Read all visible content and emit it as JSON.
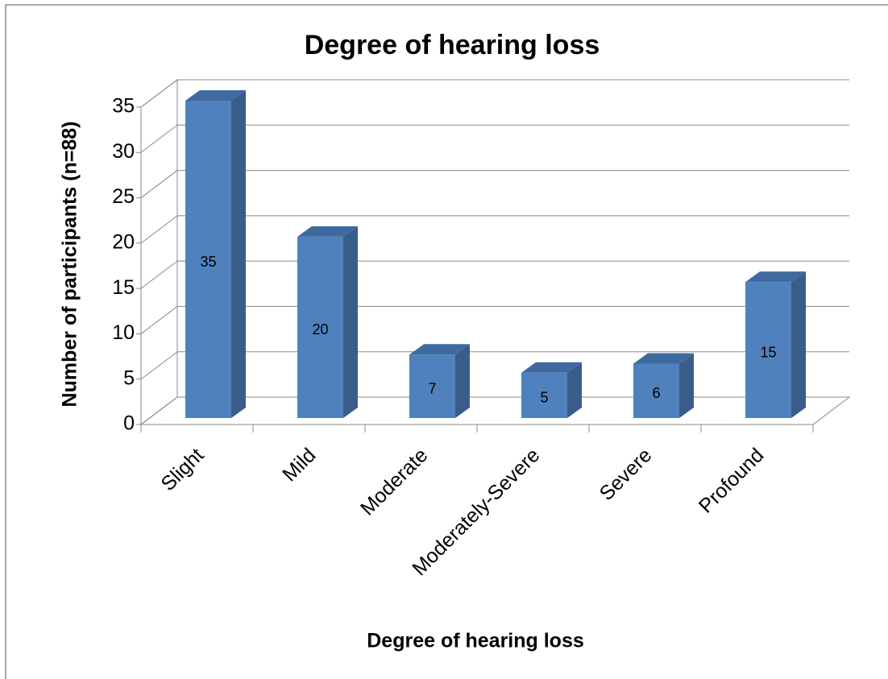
{
  "chart_data": {
    "type": "bar3d",
    "title": "Degree of hearing loss",
    "x_label": "Degree of hearing loss",
    "y_label": "Number of participants (n=88)",
    "categories": [
      "Slight",
      "Mild",
      "Moderate",
      "Moderately-Severe",
      "Severe",
      "Profound"
    ],
    "values": [
      35,
      20,
      7,
      5,
      6,
      15
    ],
    "color": "#4f81bd",
    "ylim": [
      0,
      35
    ],
    "yticks": [
      0,
      5,
      10,
      15,
      20,
      25,
      30,
      35
    ],
    "grid": true
  }
}
